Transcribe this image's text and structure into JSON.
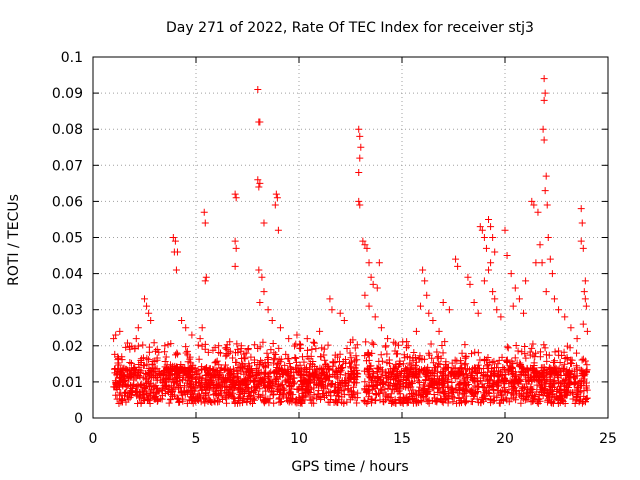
{
  "chart_data": {
    "type": "scatter",
    "title": "Day 271 of 2022, Rate Of TEC Index for receiver stj3",
    "xlabel": "GPS time / hours",
    "ylabel": "ROTI / TECUs",
    "xlim": [
      0,
      25
    ],
    "ylim": [
      0,
      0.1
    ],
    "xticks": [
      "0",
      "5",
      "10",
      "15",
      "20",
      "25"
    ],
    "yticks": [
      "0",
      "0.01",
      "0.02",
      "0.03",
      "0.04",
      "0.05",
      "0.06",
      "0.07",
      "0.08",
      "0.09",
      "0.1"
    ],
    "grid": true,
    "marker": "+",
    "color": "#ff0000",
    "series": [
      {
        "name": "ROTI",
        "points": [
          [
            1.0,
            0.022
          ],
          [
            1.1,
            0.023
          ],
          [
            1.3,
            0.024
          ],
          [
            2.1,
            0.022
          ],
          [
            2.2,
            0.025
          ],
          [
            2.5,
            0.033
          ],
          [
            2.6,
            0.031
          ],
          [
            2.7,
            0.029
          ],
          [
            2.8,
            0.027
          ],
          [
            3.9,
            0.05
          ],
          [
            4.0,
            0.049
          ],
          [
            4.1,
            0.046
          ],
          [
            3.95,
            0.046
          ],
          [
            4.05,
            0.041
          ],
          [
            4.3,
            0.027
          ],
          [
            4.5,
            0.025
          ],
          [
            4.8,
            0.023
          ],
          [
            5.4,
            0.057
          ],
          [
            5.45,
            0.054
          ],
          [
            5.5,
            0.039
          ],
          [
            5.45,
            0.038
          ],
          [
            5.3,
            0.025
          ],
          [
            5.2,
            0.022
          ],
          [
            6.1,
            0.02
          ],
          [
            6.5,
            0.019
          ],
          [
            6.9,
            0.062
          ],
          [
            6.95,
            0.061
          ],
          [
            6.9,
            0.049
          ],
          [
            6.95,
            0.047
          ],
          [
            6.9,
            0.042
          ],
          [
            7.2,
            0.02
          ],
          [
            8.0,
            0.091
          ],
          [
            8.05,
            0.082
          ],
          [
            8.1,
            0.082
          ],
          [
            8.0,
            0.066
          ],
          [
            8.1,
            0.065
          ],
          [
            8.05,
            0.064
          ],
          [
            8.05,
            0.041
          ],
          [
            8.2,
            0.039
          ],
          [
            8.3,
            0.035
          ],
          [
            8.3,
            0.054
          ],
          [
            8.1,
            0.032
          ],
          [
            8.5,
            0.03
          ],
          [
            8.7,
            0.027
          ],
          [
            8.9,
            0.062
          ],
          [
            8.95,
            0.061
          ],
          [
            8.85,
            0.059
          ],
          [
            9.0,
            0.052
          ],
          [
            9.1,
            0.025
          ],
          [
            9.5,
            0.022
          ],
          [
            9.9,
            0.023
          ],
          [
            10.4,
            0.022
          ],
          [
            10.7,
            0.021
          ],
          [
            11.0,
            0.024
          ],
          [
            11.5,
            0.033
          ],
          [
            11.6,
            0.03
          ],
          [
            12.0,
            0.029
          ],
          [
            12.2,
            0.027
          ],
          [
            12.5,
            0.021
          ],
          [
            12.9,
            0.08
          ],
          [
            12.95,
            0.078
          ],
          [
            13.0,
            0.075
          ],
          [
            12.95,
            0.072
          ],
          [
            12.9,
            0.068
          ],
          [
            12.9,
            0.06
          ],
          [
            12.95,
            0.059
          ],
          [
            13.1,
            0.049
          ],
          [
            13.2,
            0.048
          ],
          [
            13.3,
            0.047
          ],
          [
            13.4,
            0.043
          ],
          [
            13.5,
            0.039
          ],
          [
            13.6,
            0.037
          ],
          [
            13.8,
            0.036
          ],
          [
            13.9,
            0.043
          ],
          [
            13.2,
            0.034
          ],
          [
            13.4,
            0.031
          ],
          [
            13.7,
            0.028
          ],
          [
            14.0,
            0.025
          ],
          [
            14.3,
            0.022
          ],
          [
            14.6,
            0.021
          ],
          [
            15.3,
            0.02
          ],
          [
            15.7,
            0.024
          ],
          [
            16.0,
            0.041
          ],
          [
            16.1,
            0.038
          ],
          [
            16.2,
            0.034
          ],
          [
            15.9,
            0.031
          ],
          [
            16.3,
            0.029
          ],
          [
            16.5,
            0.027
          ],
          [
            16.8,
            0.024
          ],
          [
            17.0,
            0.032
          ],
          [
            17.3,
            0.03
          ],
          [
            17.6,
            0.044
          ],
          [
            17.7,
            0.042
          ],
          [
            18.2,
            0.039
          ],
          [
            18.3,
            0.037
          ],
          [
            18.5,
            0.032
          ],
          [
            18.7,
            0.029
          ],
          [
            18.8,
            0.053
          ],
          [
            18.9,
            0.052
          ],
          [
            19.0,
            0.05
          ],
          [
            19.1,
            0.047
          ],
          [
            19.2,
            0.055
          ],
          [
            19.3,
            0.053
          ],
          [
            19.4,
            0.05
          ],
          [
            19.5,
            0.046
          ],
          [
            19.3,
            0.043
          ],
          [
            19.2,
            0.041
          ],
          [
            19.0,
            0.038
          ],
          [
            19.4,
            0.035
          ],
          [
            19.5,
            0.033
          ],
          [
            19.6,
            0.03
          ],
          [
            19.8,
            0.028
          ],
          [
            20.0,
            0.052
          ],
          [
            20.1,
            0.045
          ],
          [
            20.3,
            0.04
          ],
          [
            20.5,
            0.036
          ],
          [
            20.7,
            0.033
          ],
          [
            20.4,
            0.031
          ],
          [
            20.9,
            0.029
          ],
          [
            21.0,
            0.038
          ],
          [
            21.3,
            0.06
          ],
          [
            21.4,
            0.059
          ],
          [
            21.6,
            0.057
          ],
          [
            21.7,
            0.048
          ],
          [
            21.8,
            0.043
          ],
          [
            21.5,
            0.043
          ],
          [
            21.9,
            0.094
          ],
          [
            21.95,
            0.09
          ],
          [
            21.9,
            0.088
          ],
          [
            21.85,
            0.08
          ],
          [
            21.9,
            0.077
          ],
          [
            22.0,
            0.067
          ],
          [
            21.95,
            0.063
          ],
          [
            22.05,
            0.059
          ],
          [
            22.1,
            0.05
          ],
          [
            22.2,
            0.044
          ],
          [
            22.3,
            0.04
          ],
          [
            22.0,
            0.035
          ],
          [
            22.4,
            0.033
          ],
          [
            22.6,
            0.03
          ],
          [
            22.9,
            0.028
          ],
          [
            23.2,
            0.025
          ],
          [
            23.5,
            0.022
          ],
          [
            23.7,
            0.058
          ],
          [
            23.75,
            0.054
          ],
          [
            23.7,
            0.049
          ],
          [
            23.8,
            0.047
          ],
          [
            23.9,
            0.038
          ],
          [
            23.85,
            0.035
          ],
          [
            23.9,
            0.033
          ],
          [
            23.95,
            0.031
          ],
          [
            23.8,
            0.026
          ],
          [
            24.0,
            0.024
          ]
        ]
      }
    ]
  }
}
